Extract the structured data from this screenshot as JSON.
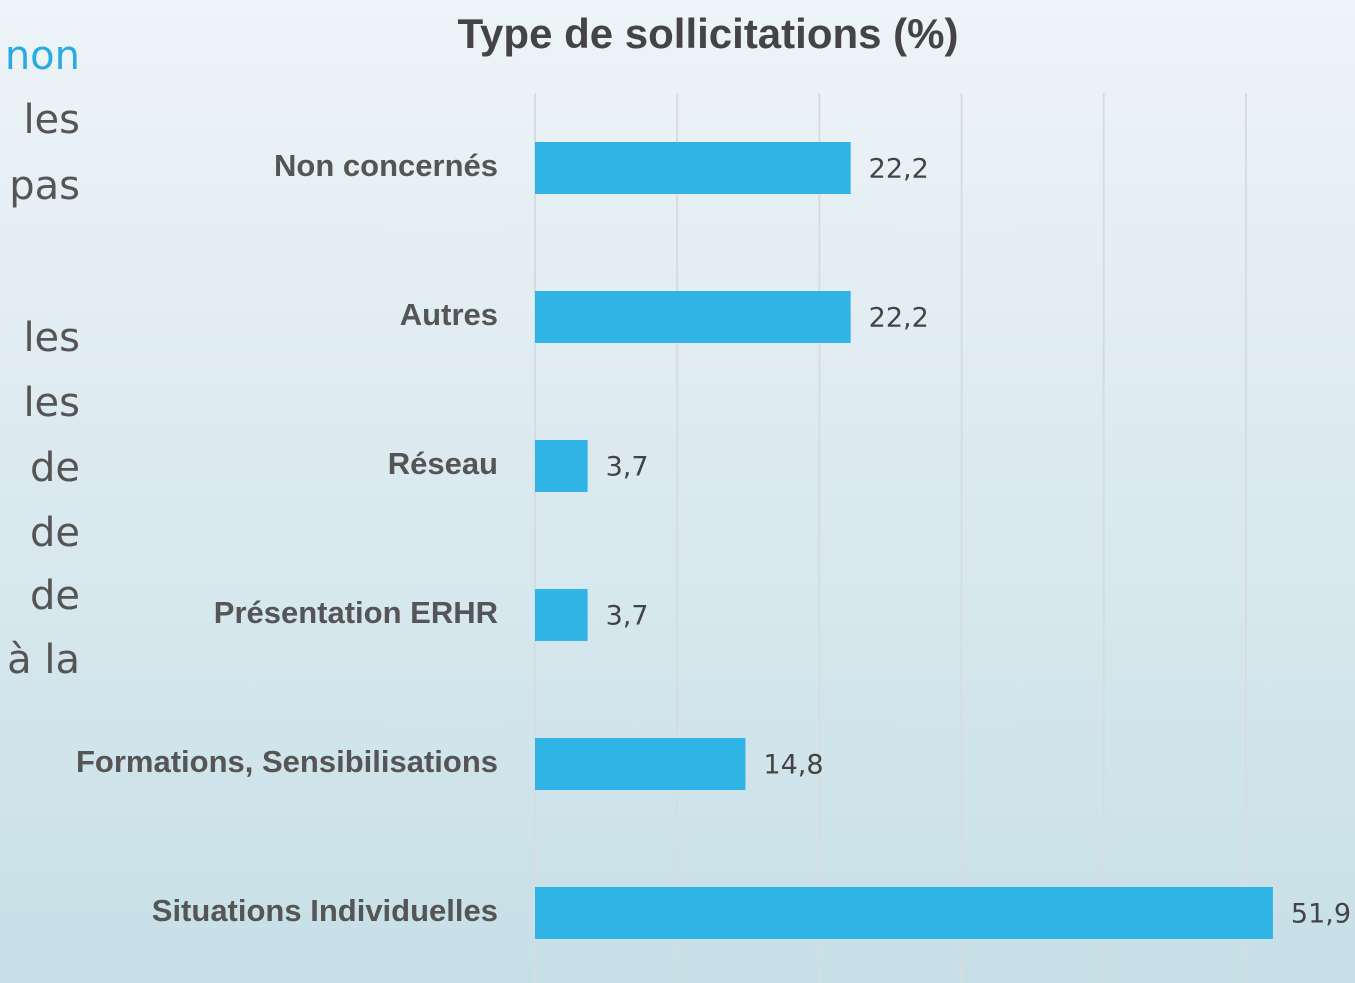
{
  "side_text": [
    "non",
    "les",
    "pas",
    "les",
    "les",
    "de",
    "de",
    "de",
    "à la"
  ],
  "chart_data": {
    "type": "hbar",
    "title": "Type de sollicitations (%)",
    "categories": [
      "Non concernés",
      "Autres",
      "Réseau",
      "Présentation ERHR",
      "Formations, Sensibilisations",
      "Situations Individuelles"
    ],
    "values": [
      22.2,
      22.2,
      3.7,
      3.7,
      14.8,
      51.9
    ],
    "value_labels": [
      "22,2",
      "22,2",
      "3,7",
      "3,7",
      "14,8",
      "51,9"
    ],
    "color": "#30b4e6",
    "xlim": [
      0,
      55
    ],
    "xticks": [
      0,
      10,
      20,
      30,
      40,
      50
    ],
    "grid": true
  }
}
